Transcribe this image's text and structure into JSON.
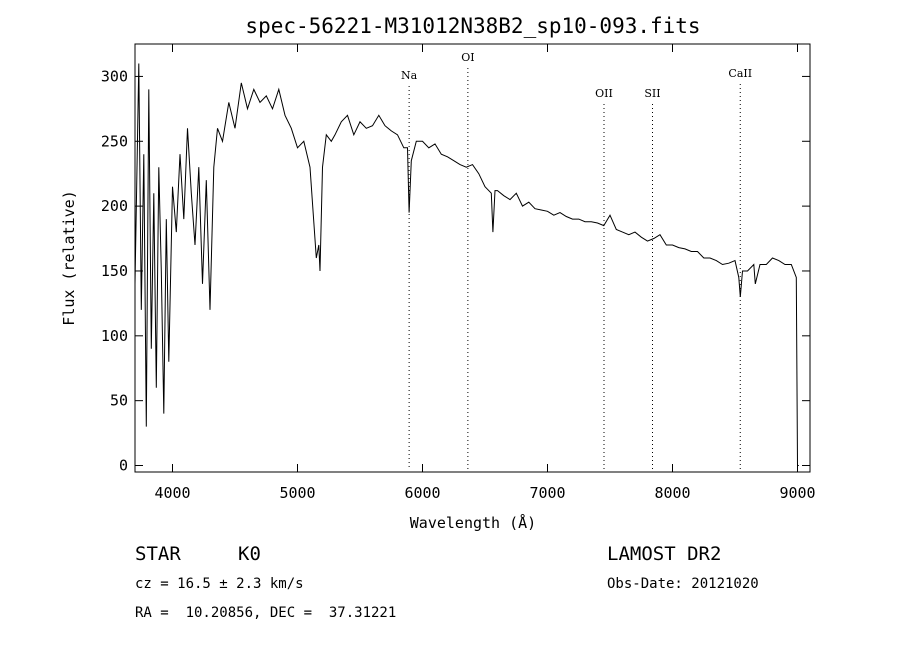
{
  "chart_data": {
    "type": "line",
    "title": "spec-56221-M31012N38B2_sp10-093.fits",
    "xlabel": "Wavelength (Å)",
    "ylabel": "Flux (relative)",
    "xlim": [
      3700,
      9100
    ],
    "ylim": [
      -5,
      325
    ],
    "xticks": [
      4000,
      5000,
      6000,
      7000,
      8000,
      9000
    ],
    "yticks": [
      0,
      50,
      100,
      150,
      200,
      250,
      300
    ],
    "grid": false,
    "series": [
      {
        "x": [
          3700,
          3730,
          3750,
          3770,
          3790,
          3810,
          3830,
          3850,
          3870,
          3890,
          3910,
          3930,
          3950,
          3970,
          4000,
          4030,
          4060,
          4090,
          4120,
          4150,
          4180,
          4210,
          4240,
          4270,
          4300,
          4330,
          4360,
          4400,
          4450,
          4500,
          4550,
          4600,
          4650,
          4700,
          4750,
          4800,
          4850,
          4900,
          4950,
          5000,
          5050,
          5100,
          5150,
          5170,
          5180,
          5200,
          5230,
          5270,
          5300,
          5350,
          5400,
          5450,
          5500,
          5550,
          5600,
          5650,
          5700,
          5750,
          5800,
          5850,
          5880,
          5893,
          5910,
          5950,
          6000,
          6050,
          6100,
          6150,
          6200,
          6250,
          6300,
          6350,
          6400,
          6450,
          6500,
          6550,
          6563,
          6580,
          6600,
          6650,
          6700,
          6750,
          6800,
          6850,
          6900,
          6950,
          7000,
          7050,
          7100,
          7150,
          7200,
          7250,
          7300,
          7350,
          7400,
          7450,
          7500,
          7550,
          7600,
          7650,
          7700,
          7750,
          7800,
          7850,
          7900,
          7950,
          8000,
          8050,
          8100,
          8150,
          8200,
          8250,
          8300,
          8350,
          8400,
          8450,
          8500,
          8530,
          8542,
          8560,
          8600,
          8650,
          8662,
          8700,
          8750,
          8800,
          8850,
          8900,
          8950,
          8990,
          9000,
          9010
        ],
        "y": [
          140,
          310,
          120,
          240,
          30,
          290,
          90,
          210,
          60,
          230,
          150,
          40,
          190,
          80,
          215,
          180,
          240,
          190,
          260,
          210,
          170,
          230,
          140,
          220,
          120,
          230,
          260,
          250,
          280,
          260,
          295,
          275,
          290,
          280,
          285,
          275,
          290,
          270,
          260,
          245,
          250,
          230,
          160,
          170,
          150,
          230,
          255,
          250,
          255,
          265,
          270,
          255,
          265,
          260,
          262,
          270,
          262,
          258,
          255,
          245,
          245,
          195,
          235,
          250,
          250,
          245,
          248,
          240,
          238,
          235,
          232,
          230,
          232,
          225,
          215,
          210,
          180,
          212,
          212,
          208,
          205,
          210,
          200,
          203,
          198,
          197,
          196,
          193,
          195,
          192,
          190,
          190,
          188,
          188,
          187,
          185,
          193,
          182,
          180,
          178,
          180,
          176,
          173,
          175,
          178,
          170,
          170,
          168,
          167,
          165,
          165,
          160,
          160,
          158,
          155,
          156,
          158,
          145,
          130,
          150,
          150,
          155,
          140,
          155,
          155,
          160,
          158,
          155,
          155,
          145,
          0,
          0
        ]
      }
    ],
    "line_markers": [
      {
        "label": "Na",
        "x": 5893
      },
      {
        "label": "OI",
        "x": 6363
      },
      {
        "label": "OII",
        "x": 7452
      },
      {
        "label": "SII",
        "x": 7840
      },
      {
        "label": "CaII",
        "x": 8542
      }
    ]
  },
  "info": {
    "class": "STAR",
    "subclass": "K0",
    "survey": "LAMOST DR2",
    "cz": "cz = 16.5 ± 2.3 km/s",
    "obs_date": "Obs-Date: 20121020",
    "coords": "RA =  10.20856, DEC =  37.31221"
  }
}
